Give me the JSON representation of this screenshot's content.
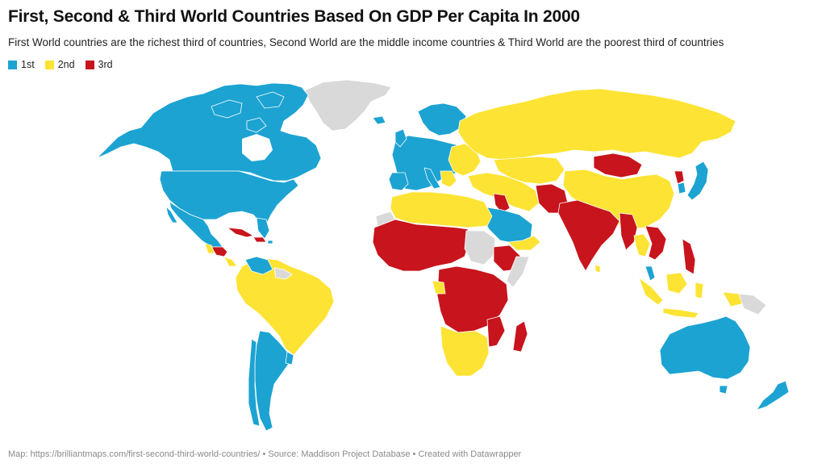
{
  "title": "First, Second & Third World Countries Based On GDP Per Capita In 2000",
  "subtitle": "First World countries are the richest third of countries, Second World are the middle income countries & Third World are the poorest third of countries",
  "legend": [
    {
      "label": "1st",
      "color": "#1ca3d2"
    },
    {
      "label": "2nd",
      "color": "#fde333"
    },
    {
      "label": "3rd",
      "color": "#c8141c"
    }
  ],
  "no_data_color": "#d9d9d9",
  "footer": {
    "map_credit": "Map: https://brilliantmaps.com/first-second-third-world-countries/",
    "separator1": " • ",
    "source": "Source: Maddison Project Database",
    "separator2": " • ",
    "created_with": "Created with Datawrapper"
  }
}
